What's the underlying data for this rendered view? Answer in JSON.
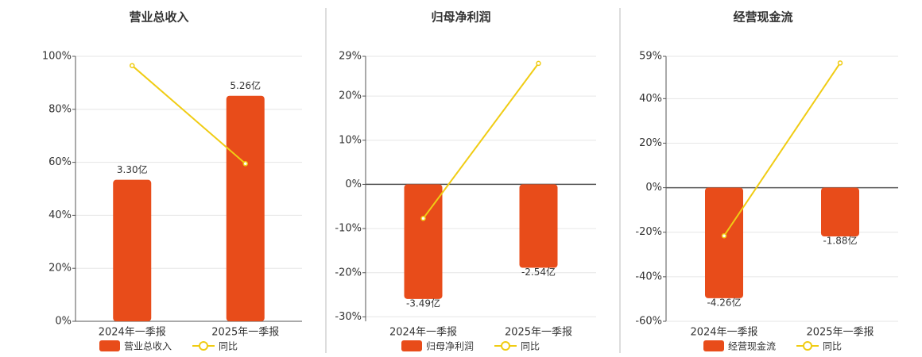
{
  "chart_data": [
    {
      "type": "bar",
      "title": "营业总收入",
      "categories": [
        "2024年一季报",
        "2025年一季报"
      ],
      "series": [
        {
          "name": "营业总收入",
          "type": "bar",
          "axis": "y2",
          "color": "#e84c1a",
          "values": [
            3.3,
            5.26
          ],
          "value_labels": [
            "3.30亿",
            "5.26亿"
          ]
        },
        {
          "name": "同比",
          "type": "line",
          "color": "#f0cc14",
          "values": [
            96.5,
            59.5
          ]
        }
      ],
      "ylim": [
        0,
        100
      ],
      "yticks": [
        {
          "value": 0,
          "label": "0%"
        },
        {
          "value": 20,
          "label": "20%"
        },
        {
          "value": 40,
          "label": "40%"
        },
        {
          "value": 60,
          "label": "60%"
        },
        {
          "value": 80,
          "label": "80%"
        },
        {
          "value": 100,
          "label": "100%"
        }
      ],
      "y2lim": [
        0,
        6.18
      ],
      "grid": true
    },
    {
      "type": "bar",
      "title": "归母净利润",
      "categories": [
        "2024年一季报",
        "2025年一季报"
      ],
      "series": [
        {
          "name": "归母净利润",
          "type": "bar",
          "axis": "y2",
          "color": "#e84c1a",
          "values": [
            -3.49,
            -2.54
          ],
          "value_labels": [
            "-3.49亿",
            "-2.54亿"
          ]
        },
        {
          "name": "同比",
          "type": "line",
          "color": "#f0cc14",
          "values": [
            -7.7,
            27.4
          ]
        }
      ],
      "ylim": [
        -31,
        29
      ],
      "yticks": [
        {
          "value": -30,
          "label": "-30%"
        },
        {
          "value": -20,
          "label": "-20%"
        },
        {
          "value": -10,
          "label": "-10%"
        },
        {
          "value": 0,
          "label": "0%"
        },
        {
          "value": 10,
          "label": "10%"
        },
        {
          "value": 20,
          "label": "20%"
        },
        {
          "value": 29,
          "label": "29%"
        }
      ],
      "y2lim": [
        -4.17,
        3.9
      ],
      "grid": true
    },
    {
      "type": "bar",
      "title": "经营现金流",
      "categories": [
        "2024年一季报",
        "2025年一季报"
      ],
      "series": [
        {
          "name": "经营现金流",
          "type": "bar",
          "axis": "y2",
          "color": "#e84c1a",
          "values": [
            -4.26,
            -1.88
          ],
          "value_labels": [
            "-4.26亿",
            "-1.88亿"
          ]
        },
        {
          "name": "同比",
          "type": "line",
          "color": "#f0cc14",
          "values": [
            -21.6,
            56.0
          ]
        }
      ],
      "ylim": [
        -60,
        59
      ],
      "yticks": [
        {
          "value": -60,
          "label": "-60%"
        },
        {
          "value": -40,
          "label": "-40%"
        },
        {
          "value": -20,
          "label": "-20%"
        },
        {
          "value": 0,
          "label": "0%"
        },
        {
          "value": 20,
          "label": "20%"
        },
        {
          "value": 40,
          "label": "40%"
        },
        {
          "value": 59,
          "label": "59%"
        }
      ],
      "y2lim": [
        -5.15,
        5.06
      ],
      "grid": true
    }
  ]
}
